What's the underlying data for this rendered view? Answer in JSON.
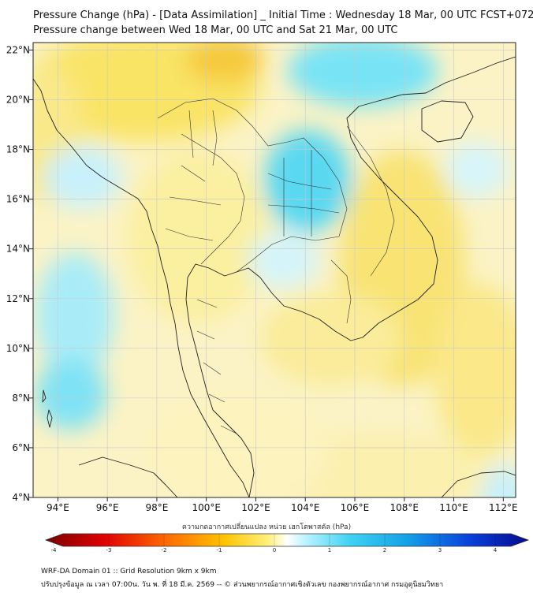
{
  "header": {
    "title": "Pressure Change (hPa) - [Data Assimilation] _ Initial Time : Wednesday 18 Mar, 00 UTC FCST+072",
    "subtitle": "Pressure change between Wed 18 Mar, 00 UTC and Sat 21 Mar, 00 UTC"
  },
  "map": {
    "lon_ticks": [
      {
        "value": 94,
        "label": "94°E"
      },
      {
        "value": 96,
        "label": "96°E"
      },
      {
        "value": 98,
        "label": "98°E"
      },
      {
        "value": 100,
        "label": "100°E"
      },
      {
        "value": 102,
        "label": "102°E"
      },
      {
        "value": 104,
        "label": "104°E"
      },
      {
        "value": 106,
        "label": "106°E"
      },
      {
        "value": 108,
        "label": "108°E"
      },
      {
        "value": 110,
        "label": "110°E"
      },
      {
        "value": 112,
        "label": "112°E"
      }
    ],
    "lat_ticks": [
      {
        "value": 22,
        "label": "22°N"
      },
      {
        "value": 20,
        "label": "20°N"
      },
      {
        "value": 18,
        "label": "18°N"
      },
      {
        "value": 16,
        "label": "16°N"
      },
      {
        "value": 14,
        "label": "14°N"
      },
      {
        "value": 12,
        "label": "12°N"
      },
      {
        "value": 10,
        "label": "10°N"
      },
      {
        "value": 8,
        "label": "8°N"
      },
      {
        "value": 6,
        "label": "6°N"
      },
      {
        "value": 4,
        "label": "4°N"
      }
    ],
    "lon_range": [
      93,
      112.5
    ],
    "lat_range": [
      4,
      22.3
    ],
    "colors": {
      "positive": "#4fd8f0",
      "negative": "#f7d21e",
      "coast": "#222222"
    }
  },
  "colorbar": {
    "title": "ความกดอากาศเปลี่ยนแปลง หน่วย เฮกโตพาสคัล (hPa)",
    "range": [
      -4,
      4
    ],
    "ticks": [
      {
        "value": -4,
        "label": "-4"
      },
      {
        "value": -3,
        "label": "-3"
      },
      {
        "value": -2,
        "label": "-2"
      },
      {
        "value": -1,
        "label": "-1"
      },
      {
        "value": 0,
        "label": "0"
      },
      {
        "value": 1,
        "label": "1"
      },
      {
        "value": 2,
        "label": "2"
      },
      {
        "value": 3,
        "label": "3"
      },
      {
        "value": 4,
        "label": "4"
      }
    ]
  },
  "footer": {
    "line1": "WRF-DA Domain 01 :: Grid Resolution 9km x 9km",
    "line2": "ปรับปรุงข้อมูล ณ เวลา 07:00น. วัน พ. ที่ 18 มี.ค. 2569 -- © ส่วนพยากรณ์อากาศเชิงตัวเลข กองพยากรณ์อากาศ กรมอุตุนิยมวิทยา"
  }
}
